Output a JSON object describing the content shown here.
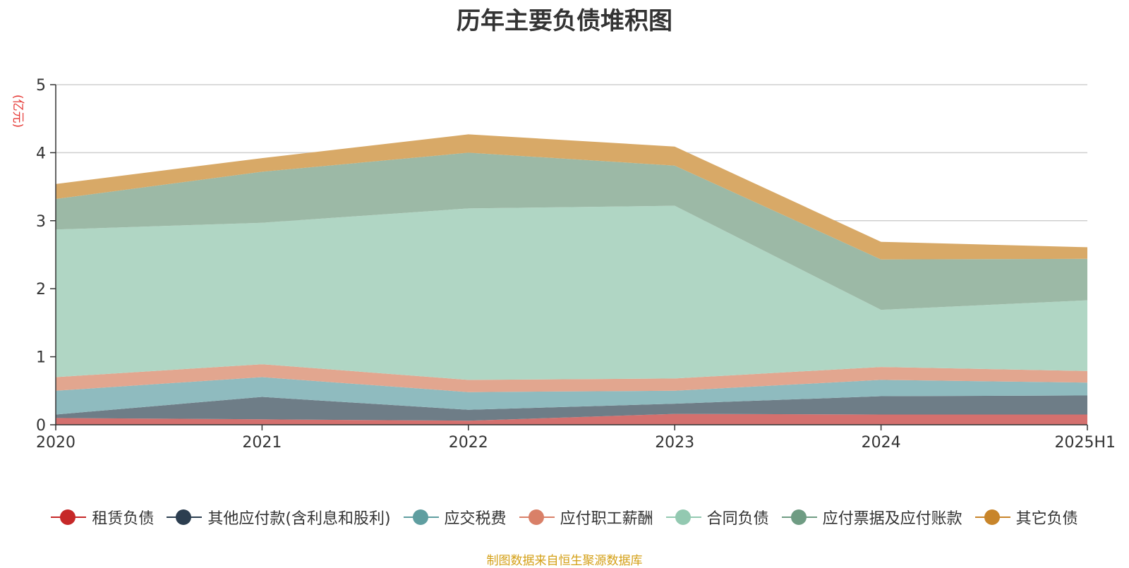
{
  "title": "历年主要负债堆积图",
  "unit": "(亿元)",
  "source_note": "制图数据来自恒生聚源数据库",
  "chart_data": {
    "type": "area",
    "stacked": true,
    "title": "历年主要负债堆积图",
    "ylabel": "(亿元)",
    "categories": [
      "2020",
      "2021",
      "2022",
      "2023",
      "2024",
      "2025H1"
    ],
    "ylim": [
      0,
      5
    ],
    "yticks": [
      "0",
      "1",
      "2",
      "3",
      "4",
      "5"
    ],
    "grid": true,
    "legend_position": "bottom",
    "series": [
      {
        "name": "租赁负债",
        "color": "#c62828",
        "fill": "#d4706e",
        "values": [
          0.1,
          0.08,
          0.06,
          0.16,
          0.15,
          0.15
        ]
      },
      {
        "name": "其他应付款(含利息和股利)",
        "color": "#2c3e50",
        "fill": "#6e7d87",
        "values": [
          0.05,
          0.33,
          0.16,
          0.15,
          0.27,
          0.28
        ]
      },
      {
        "name": "应交税费",
        "color": "#5f9ea0",
        "fill": "#8fbbbf",
        "values": [
          0.35,
          0.29,
          0.26,
          0.19,
          0.24,
          0.19
        ]
      },
      {
        "name": "应付职工薪酬",
        "color": "#d98068",
        "fill": "#e2a68f",
        "values": [
          0.2,
          0.19,
          0.18,
          0.18,
          0.19,
          0.17
        ]
      },
      {
        "name": "合同负债",
        "color": "#93c9b1",
        "fill": "#b0d6c4",
        "values": [
          2.17,
          2.08,
          2.52,
          2.54,
          0.84,
          1.04
        ]
      },
      {
        "name": "应付票据及应付账款",
        "color": "#6f9c83",
        "fill": "#9cb9a6",
        "values": [
          0.45,
          0.75,
          0.82,
          0.59,
          0.74,
          0.61
        ]
      },
      {
        "name": "其它负债",
        "color": "#c8852a",
        "fill": "#d8a967",
        "values": [
          0.22,
          0.2,
          0.27,
          0.28,
          0.26,
          0.17
        ]
      }
    ]
  }
}
